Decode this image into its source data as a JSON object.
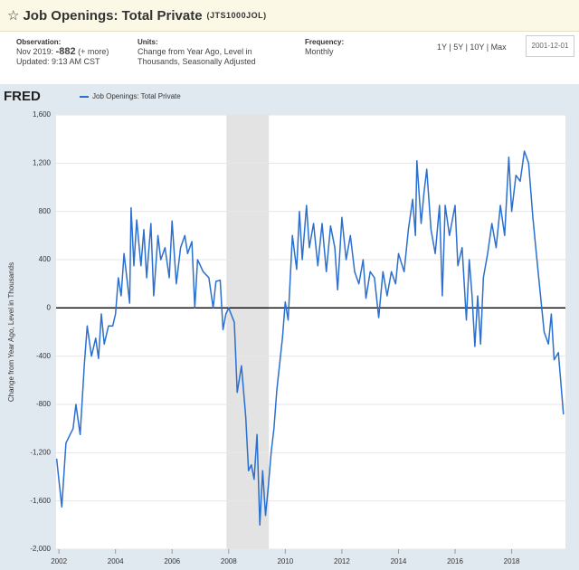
{
  "header": {
    "title": "Job Openings: Total Private",
    "code": "(JTS1000JOL)"
  },
  "info": {
    "observation_label": "Observation:",
    "observation_date": "Nov 2019:",
    "observation_value": -882,
    "more": "(+ more)",
    "updated": "Updated: 9:13 AM CST",
    "units_label": "Units:",
    "units": "Change from Year Ago, Level in Thousands, Seasonally Adjusted",
    "frequency_label": "Frequency:",
    "frequency": "Monthly",
    "ranges": [
      "1Y",
      "5Y",
      "10Y",
      "Max"
    ],
    "start_date": "2001-12-01"
  },
  "chart_data": {
    "type": "line",
    "logo": "FRED",
    "y_label": "Change from Year Ago, Level in Thousands",
    "x": [
      2001.92,
      2002.1,
      2002.25,
      2002.5,
      2002.6,
      2002.75,
      2002.9,
      2003.0,
      2003.15,
      2003.3,
      2003.4,
      2003.5,
      2003.6,
      2003.75,
      2003.9,
      2004.0,
      2004.1,
      2004.2,
      2004.3,
      2004.4,
      2004.5,
      2004.55,
      2004.65,
      2004.75,
      2004.9,
      2005.0,
      2005.1,
      2005.25,
      2005.35,
      2005.5,
      2005.6,
      2005.75,
      2005.9,
      2006.0,
      2006.15,
      2006.3,
      2006.45,
      2006.55,
      2006.7,
      2006.8,
      2006.9,
      2007.1,
      2007.3,
      2007.45,
      2007.55,
      2007.7,
      2007.8,
      2007.9,
      2008.0,
      2008.2,
      2008.3,
      2008.45,
      2008.6,
      2008.7,
      2008.8,
      2008.9,
      2009.0,
      2009.1,
      2009.2,
      2009.3,
      2009.4,
      2009.5,
      2009.6,
      2009.7,
      2009.9,
      2010.0,
      2010.1,
      2010.25,
      2010.4,
      2010.5,
      2010.6,
      2010.75,
      2010.85,
      2011.0,
      2011.15,
      2011.3,
      2011.45,
      2011.6,
      2011.75,
      2011.85,
      2012.0,
      2012.15,
      2012.3,
      2012.45,
      2012.6,
      2012.75,
      2012.85,
      2013.0,
      2013.15,
      2013.3,
      2013.45,
      2013.6,
      2013.75,
      2013.9,
      2014.0,
      2014.2,
      2014.35,
      2014.5,
      2014.6,
      2014.65,
      2014.8,
      2014.9,
      2015.0,
      2015.15,
      2015.3,
      2015.45,
      2015.55,
      2015.65,
      2015.8,
      2016.0,
      2016.1,
      2016.25,
      2016.4,
      2016.5,
      2016.6,
      2016.7,
      2016.8,
      2016.9,
      2017.0,
      2017.15,
      2017.3,
      2017.45,
      2017.6,
      2017.75,
      2017.9,
      2018.0,
      2018.15,
      2018.3,
      2018.45,
      2018.6,
      2018.75,
      2018.85,
      2019.0,
      2019.15,
      2019.3,
      2019.4,
      2019.5,
      2019.65,
      2019.83
    ],
    "series": [
      {
        "name": "Job Openings: Total Private",
        "color": "#2b6fcf",
        "values": [
          -1250,
          -1650,
          -1120,
          -1000,
          -800,
          -1050,
          -460,
          -150,
          -400,
          -250,
          -420,
          -50,
          -300,
          -150,
          -150,
          -50,
          250,
          100,
          450,
          250,
          40,
          830,
          350,
          730,
          350,
          650,
          250,
          700,
          100,
          600,
          400,
          500,
          250,
          720,
          200,
          500,
          600,
          450,
          550,
          0,
          400,
          300,
          250,
          0,
          220,
          230,
          -180,
          -50,
          0,
          -120,
          -700,
          -480,
          -900,
          -1350,
          -1300,
          -1420,
          -1050,
          -1800,
          -1350,
          -1720,
          -1480,
          -1200,
          -1000,
          -680,
          -250,
          50,
          -100,
          600,
          320,
          800,
          400,
          850,
          500,
          700,
          350,
          700,
          300,
          680,
          500,
          150,
          750,
          400,
          600,
          300,
          200,
          400,
          80,
          300,
          250,
          -80,
          300,
          100,
          300,
          200,
          450,
          300,
          650,
          900,
          600,
          1220,
          700,
          950,
          1150,
          650,
          450,
          850,
          100,
          850,
          600,
          850,
          350,
          500,
          -100,
          400,
          100,
          -320,
          100,
          -300,
          250,
          450,
          700,
          500,
          850,
          600,
          1250,
          800,
          1100,
          1050,
          1300,
          1200,
          750,
          500,
          150,
          -200,
          -300,
          -50,
          -430,
          -370,
          -882
        ]
      }
    ],
    "shaded": [
      {
        "from": 2007.92,
        "to": 2009.42
      }
    ],
    "xlim": [
      2001.9,
      2019.9
    ],
    "xticks": [
      2002,
      2004,
      2006,
      2008,
      2010,
      2012,
      2014,
      2016,
      2018
    ],
    "ylim": [
      -2000,
      1600
    ],
    "yticks": [
      {
        "value": -2000,
        "label": "-2,000"
      },
      {
        "value": -1600,
        "label": "-1,600"
      },
      {
        "value": -1200,
        "label": "-1,200"
      },
      -800,
      -400,
      0,
      400,
      800,
      {
        "value": 1200,
        "label": "1,200"
      },
      {
        "value": 1600,
        "label": "1,600"
      }
    ],
    "grid": true
  }
}
